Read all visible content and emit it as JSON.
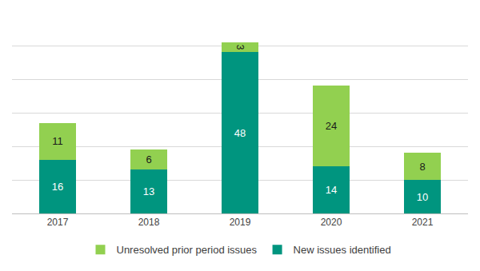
{
  "chart_data": {
    "type": "bar",
    "stacked": true,
    "categories": [
      "2017",
      "2018",
      "2019",
      "2020",
      "2021"
    ],
    "series": [
      {
        "name": "New issues identified",
        "color": "#00957f",
        "values": [
          16,
          13,
          48,
          14,
          10
        ]
      },
      {
        "name": "Unresolved prior period issues",
        "color": "#92d050",
        "values": [
          11,
          6,
          3,
          24,
          8
        ]
      }
    ],
    "ylim": [
      0,
      60
    ],
    "yticks": [
      0,
      10,
      20,
      30,
      40,
      50,
      60
    ],
    "grid": true,
    "data_labels": true,
    "tick_labels": "x",
    "legend": "bottom"
  }
}
